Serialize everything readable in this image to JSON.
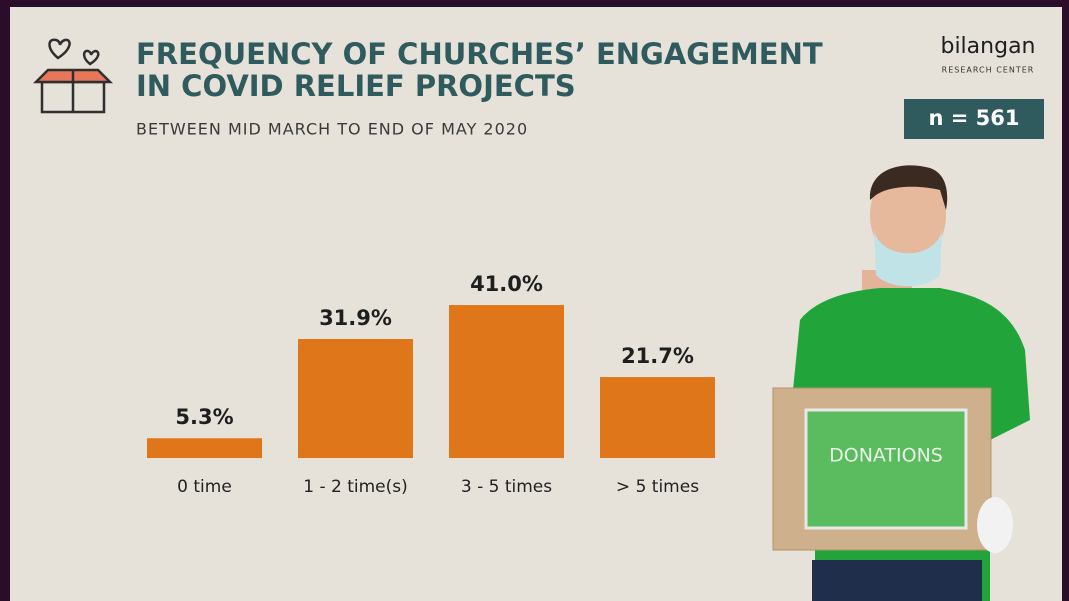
{
  "chart_data": {
    "type": "bar",
    "title": [
      "FREQUENCY OF CHURCHES’ ENGAGEMENT",
      "IN COVID RELIEF PROJECTS"
    ],
    "subtitle": "BETWEEN MID MARCH TO END OF MAY 2020",
    "categories": [
      "0 time",
      "1 - 2 time(s)",
      "3 - 5 times",
      "> 5 times"
    ],
    "values": [
      5.3,
      31.9,
      41.0,
      21.7
    ],
    "value_labels": [
      "5.3%",
      "31.9%",
      "41.0%",
      "21.7%"
    ],
    "color": "#e0761a"
  },
  "brand": {
    "name": "bilangan",
    "tagline": "RESEARCH CENTER"
  },
  "sample_size": "n = 561",
  "photo_text": "DONATIONS"
}
